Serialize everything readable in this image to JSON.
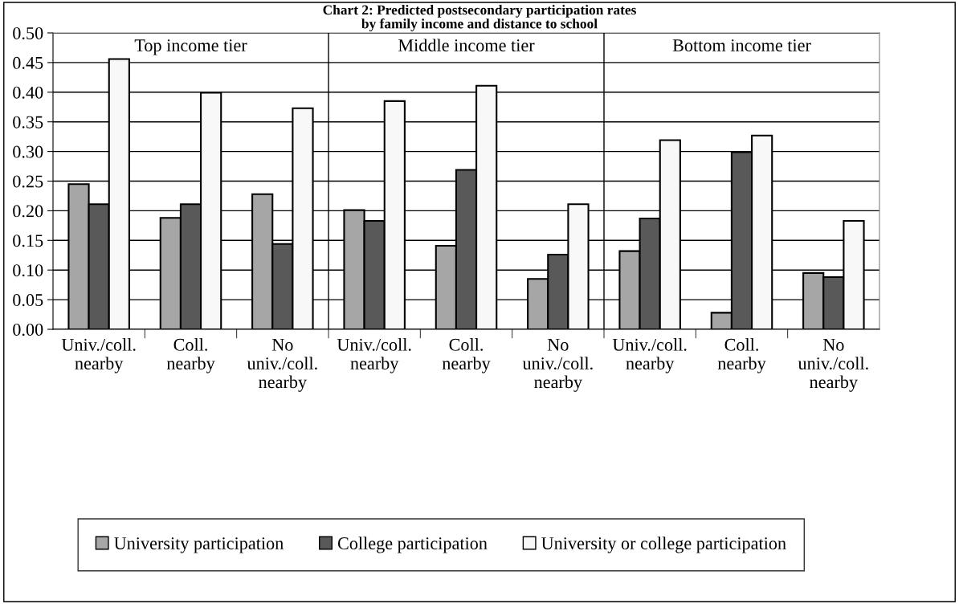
{
  "chart_data": {
    "type": "bar",
    "title": "Chart 2: Predicted postsecondary participation rates\nby family income and distance to school",
    "categories": [
      "Univ./coll.\nnearby",
      "Coll.\nnearby",
      "No\nuniv./coll.\nnearby",
      "Univ./coll.\nnearby",
      "Coll.\nnearby",
      "No\nuniv./coll.\nnearby",
      "Univ./coll.\nnearby",
      "Coll.\nnearby",
      "No\nuniv./coll.\nnearby"
    ],
    "series": [
      {
        "name": "University participation",
        "color": "#a6a6a6",
        "values": [
          0.245,
          0.188,
          0.228,
          0.201,
          0.141,
          0.085,
          0.132,
          0.028,
          0.095
        ]
      },
      {
        "name": "College participation",
        "color": "#595959",
        "values": [
          0.211,
          0.211,
          0.144,
          0.183,
          0.269,
          0.126,
          0.187,
          0.299,
          0.088
        ]
      },
      {
        "name": "University or college participation",
        "color": "#f8f8f8",
        "values": [
          0.456,
          0.399,
          0.373,
          0.385,
          0.411,
          0.211,
          0.319,
          0.327,
          0.183
        ]
      }
    ],
    "annotations": [
      "Top income tier",
      "Middle income tier",
      "Bottom income tier"
    ],
    "ylim": [
      0,
      0.5
    ],
    "yticks": [
      {
        "value": 0,
        "label": "0.00"
      },
      {
        "value": 0.05,
        "label": "0.05"
      },
      {
        "value": 0.1,
        "label": "0.10"
      },
      {
        "value": 0.15,
        "label": "0.15"
      },
      {
        "value": 0.2,
        "label": "0.20"
      },
      {
        "value": 0.25,
        "label": "0.25"
      },
      {
        "value": 0.3,
        "label": "0.30"
      },
      {
        "value": 0.35,
        "label": "0.35"
      },
      {
        "value": 0.4,
        "label": "0.40"
      },
      {
        "value": 0.45,
        "label": "0.45"
      },
      {
        "value": 0.5,
        "label": "0.50"
      }
    ],
    "grid": "y",
    "legend": "bottom"
  }
}
